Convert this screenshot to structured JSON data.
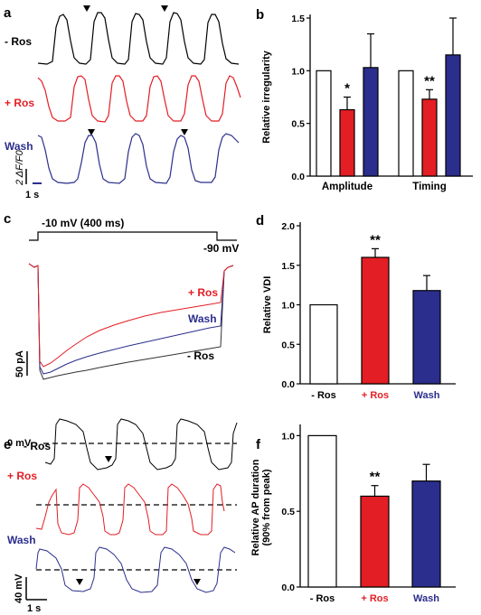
{
  "colors": {
    "ros_minus": "#000000",
    "ros_plus": "#e31e24",
    "wash": "#2b2e8c",
    "axis": "#000000"
  },
  "panels": {
    "a": {
      "letter": "a",
      "labels": [
        "- Ros",
        "+ Ros",
        "Wash"
      ],
      "scale_y": "2 ΔF/F0",
      "scale_x": "1 s"
    },
    "c": {
      "letter": "c",
      "step_label": "-10 mV (400 ms)",
      "hold_label": "-90 mV",
      "trace_labels": [
        "+ Ros",
        "Wash",
        "- Ros"
      ],
      "scale_y": "50 pA"
    },
    "e": {
      "letter": "e",
      "labels": [
        "- Ros",
        "+ Ros",
        "Wash"
      ],
      "zero_label": "0 mV",
      "scale_y": "40 mV",
      "scale_x": "1 s"
    }
  },
  "chart_data": [
    {
      "panel": "b",
      "type": "bar",
      "ylabel": "Relative irregularity",
      "categories": [
        "Amplitude",
        "Timing"
      ],
      "ylim": [
        0,
        1.5
      ],
      "yticks": [
        "0.0",
        "0.5",
        "1.0",
        "1.5"
      ],
      "series": [
        {
          "name": "- Ros",
          "values": [
            1.0,
            1.0
          ],
          "errors": [
            0,
            0
          ],
          "sig": [
            "",
            ""
          ]
        },
        {
          "name": "+ Ros",
          "values": [
            0.63,
            0.73
          ],
          "errors": [
            0.12,
            0.09
          ],
          "sig": [
            "*",
            "**"
          ]
        },
        {
          "name": "Wash",
          "values": [
            1.03,
            1.15
          ],
          "errors": [
            0.32,
            0.35
          ],
          "sig": [
            "",
            ""
          ]
        }
      ]
    },
    {
      "panel": "d",
      "type": "bar",
      "ylabel": "Relative VDI",
      "categories": [
        "- Ros",
        "+ Ros",
        "Wash"
      ],
      "ylim": [
        0,
        2.0
      ],
      "yticks": [
        "0.0",
        "0.5",
        "1.0",
        "1.5",
        "2.0"
      ],
      "values": [
        1.0,
        1.6,
        1.18
      ],
      "errors": [
        0,
        0.11,
        0.19
      ],
      "sig": [
        "",
        "**",
        ""
      ]
    },
    {
      "panel": "f",
      "type": "bar",
      "ylabel": "Relative AP duration",
      "ylabel2": "(90% from peak)",
      "categories": [
        "- Ros",
        "+ Ros",
        "Wash"
      ],
      "ylim": [
        0,
        1.05
      ],
      "yticks": [
        "0.0",
        "0.5",
        "1.0"
      ],
      "values": [
        1.0,
        0.6,
        0.7
      ],
      "errors": [
        0,
        0.07,
        0.11
      ],
      "sig": [
        "",
        "**",
        ""
      ]
    }
  ]
}
